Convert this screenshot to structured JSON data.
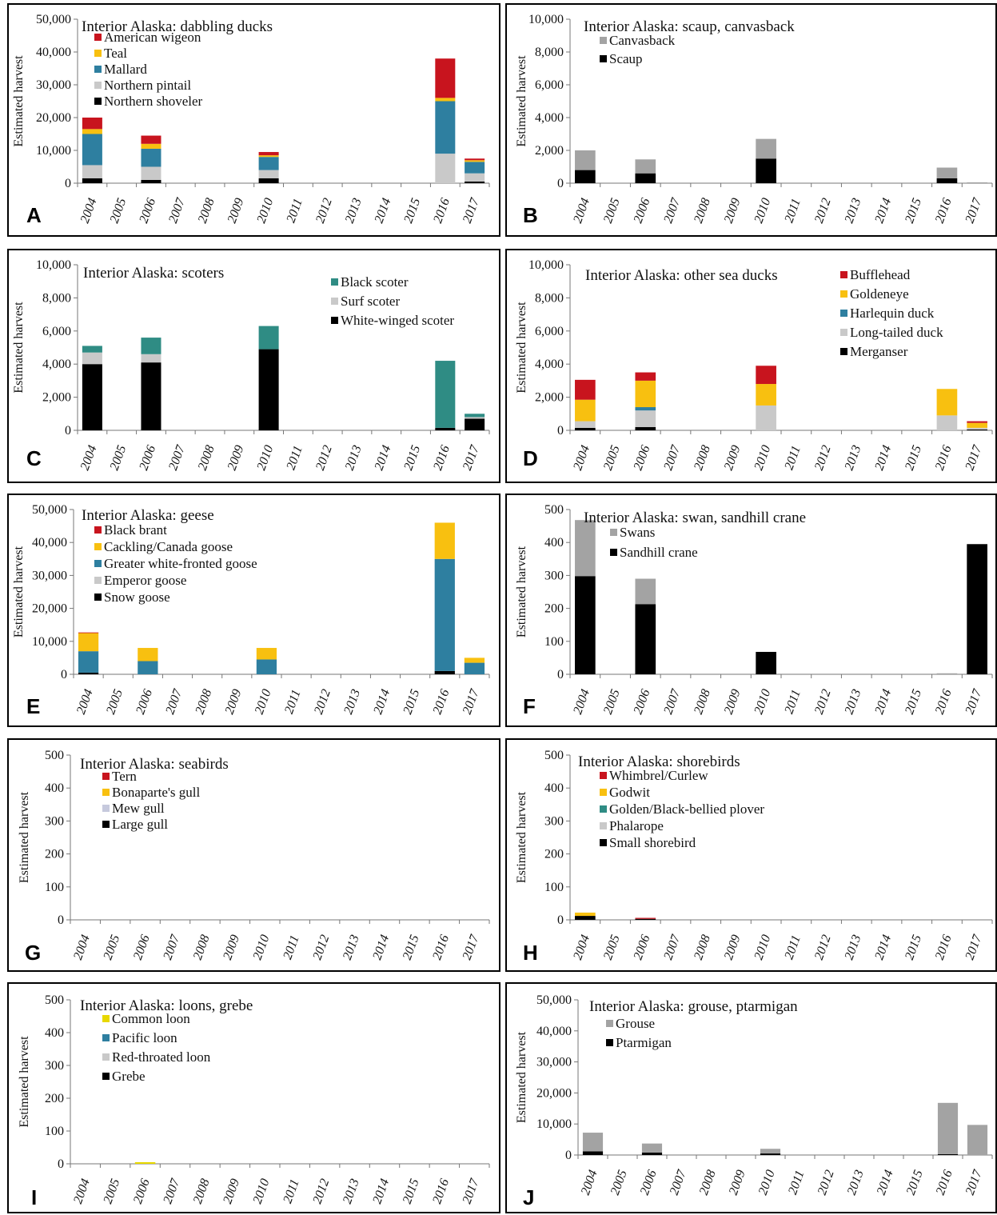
{
  "years": [
    "2004",
    "2005",
    "2006",
    "2007",
    "2008",
    "2009",
    "2010",
    "2011",
    "2012",
    "2013",
    "2014",
    "2015",
    "2016",
    "2017"
  ],
  "ylabel": "Estimated harvest",
  "colors": {
    "red": "#c8141e",
    "yellow": "#f8c010",
    "teal": "#2e7fa0",
    "tealgreen": "#2f8c84",
    "lightgray": "#c9c9c9",
    "gray": "#a3a3a3",
    "lavender": "#c6c9dd",
    "black": "#000000"
  },
  "chart_data": [
    {
      "letter": "A",
      "type": "bar",
      "stacked": true,
      "title": "Interior Alaska: dabbling ducks",
      "ylim": [
        0,
        50000
      ],
      "yticks": [
        "0",
        "10,000",
        "20,000",
        "30,000",
        "40,000",
        "50,000"
      ],
      "legend_placement": "top-left",
      "series": [
        {
          "name": "Northern shoveler",
          "color": "#000000",
          "values": [
            1500,
            0,
            1000,
            0,
            0,
            0,
            1500,
            0,
            0,
            0,
            0,
            0,
            0,
            500
          ]
        },
        {
          "name": "Northern pintail",
          "color": "#c9c9c9",
          "values": [
            4000,
            0,
            4000,
            0,
            0,
            0,
            2500,
            0,
            0,
            0,
            0,
            0,
            9000,
            2500
          ]
        },
        {
          "name": "Mallard",
          "color": "#2e7fa0",
          "values": [
            9500,
            0,
            5500,
            0,
            0,
            0,
            4000,
            0,
            0,
            0,
            0,
            0,
            16000,
            3500
          ]
        },
        {
          "name": "Teal",
          "color": "#f8c010",
          "values": [
            1500,
            0,
            1500,
            0,
            0,
            0,
            500,
            0,
            0,
            0,
            0,
            0,
            1000,
            500
          ]
        },
        {
          "name": "American wigeon",
          "color": "#c8141e",
          "values": [
            3500,
            0,
            2500,
            0,
            0,
            0,
            1000,
            0,
            0,
            0,
            0,
            0,
            12000,
            500
          ]
        }
      ]
    },
    {
      "letter": "B",
      "type": "bar",
      "stacked": true,
      "title": "Interior Alaska: scaup, canvasback",
      "ylim": [
        0,
        10000
      ],
      "yticks": [
        "0",
        "2,000",
        "4,000",
        "6,000",
        "8,000",
        "10,000"
      ],
      "legend_placement": "top-left",
      "series": [
        {
          "name": "Scaup",
          "color": "#000000",
          "values": [
            800,
            0,
            600,
            0,
            0,
            0,
            1500,
            0,
            0,
            0,
            0,
            0,
            300,
            0
          ]
        },
        {
          "name": "Canvasback",
          "color": "#a3a3a3",
          "values": [
            1200,
            0,
            850,
            0,
            0,
            0,
            1200,
            0,
            0,
            0,
            0,
            0,
            650,
            50
          ]
        }
      ]
    },
    {
      "letter": "C",
      "type": "bar",
      "stacked": true,
      "title": "Interior Alaska: scoters",
      "ylim": [
        0,
        10000
      ],
      "yticks": [
        "0",
        "2,000",
        "4,000",
        "6,000",
        "8,000",
        "10,000"
      ],
      "legend_placement": "top-right",
      "series": [
        {
          "name": "White-winged scoter",
          "color": "#000000",
          "values": [
            4000,
            0,
            4100,
            0,
            0,
            0,
            4900,
            0,
            0,
            0,
            0,
            0,
            150,
            700
          ]
        },
        {
          "name": "Surf scoter",
          "color": "#c9c9c9",
          "values": [
            700,
            0,
            500,
            0,
            0,
            0,
            0,
            0,
            0,
            0,
            0,
            0,
            0,
            100
          ]
        },
        {
          "name": "Black scoter",
          "color": "#2f8c84",
          "values": [
            400,
            0,
            1000,
            0,
            0,
            0,
            1400,
            0,
            0,
            0,
            0,
            0,
            4050,
            200
          ]
        }
      ]
    },
    {
      "letter": "D",
      "type": "bar",
      "stacked": true,
      "title": "Interior Alaska: other sea ducks",
      "ylim": [
        0,
        10000
      ],
      "yticks": [
        "0",
        "2,000",
        "4,000",
        "6,000",
        "8,000",
        "10,000"
      ],
      "legend_placement": "top-right",
      "series": [
        {
          "name": "Merganser",
          "color": "#000000",
          "values": [
            150,
            0,
            200,
            0,
            0,
            0,
            0,
            0,
            0,
            0,
            0,
            0,
            0,
            50
          ]
        },
        {
          "name": "Long-tailed duck",
          "color": "#c9c9c9",
          "values": [
            400,
            0,
            1000,
            0,
            0,
            0,
            1500,
            0,
            0,
            0,
            0,
            0,
            900,
            100
          ]
        },
        {
          "name": "Harlequin duck",
          "color": "#2e7fa0",
          "values": [
            0,
            0,
            200,
            0,
            0,
            0,
            0,
            0,
            0,
            0,
            0,
            0,
            0,
            0
          ]
        },
        {
          "name": "Goldeneye",
          "color": "#f8c010",
          "values": [
            1300,
            0,
            1600,
            0,
            0,
            0,
            1300,
            0,
            0,
            0,
            0,
            0,
            1600,
            300
          ]
        },
        {
          "name": "Bufflehead",
          "color": "#c8141e",
          "values": [
            1200,
            0,
            500,
            0,
            0,
            0,
            1100,
            0,
            0,
            0,
            0,
            0,
            0,
            100
          ]
        }
      ]
    },
    {
      "letter": "E",
      "type": "bar",
      "stacked": true,
      "title": "Interior Alaska: geese",
      "ylim": [
        0,
        50000
      ],
      "yticks": [
        "0",
        "10,000",
        "20,000",
        "30,000",
        "40,000",
        "50,000"
      ],
      "legend_placement": "top-left",
      "series": [
        {
          "name": "Snow goose",
          "color": "#000000",
          "values": [
            500,
            0,
            0,
            0,
            0,
            0,
            0,
            0,
            0,
            0,
            0,
            0,
            1000,
            0
          ]
        },
        {
          "name": "Emperor goose",
          "color": "#c9c9c9",
          "values": [
            0,
            0,
            0,
            0,
            0,
            0,
            0,
            0,
            0,
            0,
            0,
            0,
            0,
            0
          ]
        },
        {
          "name": "Greater white-fronted goose",
          "color": "#2e7fa0",
          "values": [
            6500,
            0,
            4000,
            0,
            0,
            0,
            4500,
            0,
            0,
            0,
            0,
            0,
            34000,
            3500
          ]
        },
        {
          "name": "Cackling/Canada goose",
          "color": "#f8c010",
          "values": [
            5500,
            0,
            4000,
            0,
            0,
            0,
            3500,
            0,
            0,
            0,
            0,
            0,
            11000,
            1500
          ]
        },
        {
          "name": "Black brant",
          "color": "#c8141e",
          "values": [
            200,
            0,
            0,
            0,
            0,
            0,
            0,
            0,
            0,
            0,
            0,
            0,
            0,
            0
          ]
        }
      ]
    },
    {
      "letter": "F",
      "type": "bar",
      "stacked": true,
      "title": "Interior Alaska: swan, sandhill crane",
      "ylim": [
        0,
        500
      ],
      "yticks": [
        "0",
        "100",
        "200",
        "300",
        "400",
        "500"
      ],
      "legend_placement": "top-left",
      "series": [
        {
          "name": "Sandhill crane",
          "color": "#000000",
          "values": [
            298,
            0,
            213,
            0,
            0,
            0,
            68,
            0,
            0,
            0,
            0,
            0,
            0,
            395
          ]
        },
        {
          "name": "Swans",
          "color": "#a3a3a3",
          "values": [
            170,
            0,
            77,
            0,
            0,
            0,
            0,
            0,
            0,
            0,
            0,
            0,
            3,
            0
          ]
        }
      ]
    },
    {
      "letter": "G",
      "type": "bar",
      "stacked": true,
      "title": "Interior Alaska: seabirds",
      "ylim": [
        0,
        500
      ],
      "yticks": [
        "0",
        "100",
        "200",
        "300",
        "400",
        "500"
      ],
      "legend_placement": "top-left",
      "series": [
        {
          "name": "Large gull",
          "color": "#000000",
          "values": [
            0,
            0,
            0,
            0,
            0,
            0,
            0,
            0,
            0,
            0,
            0,
            0,
            0,
            0
          ]
        },
        {
          "name": "Mew gull",
          "color": "#c6c9dd",
          "values": [
            0,
            0,
            0,
            0,
            0,
            0,
            0,
            0,
            0,
            0,
            0,
            0,
            0,
            0
          ]
        },
        {
          "name": "Bonaparte's gull",
          "color": "#f8c010",
          "values": [
            0,
            0,
            0,
            0,
            0,
            0,
            0,
            0,
            0,
            0,
            0,
            0,
            0,
            0
          ]
        },
        {
          "name": "Tern",
          "color": "#c8141e",
          "values": [
            0,
            0,
            0,
            0,
            0,
            0,
            0,
            0,
            0,
            0,
            0,
            0,
            0,
            0
          ]
        }
      ]
    },
    {
      "letter": "H",
      "type": "bar",
      "stacked": true,
      "title": "Interior Alaska: shorebirds",
      "ylim": [
        0,
        500
      ],
      "yticks": [
        "0",
        "100",
        "200",
        "300",
        "400",
        "500"
      ],
      "legend_placement": "top-left",
      "series": [
        {
          "name": "Small shorebird",
          "color": "#000000",
          "values": [
            12,
            0,
            3,
            0,
            0,
            0,
            0,
            0,
            0,
            0,
            0,
            0,
            0,
            0
          ]
        },
        {
          "name": "Phalarope",
          "color": "#c9c9c9",
          "values": [
            0,
            0,
            0,
            0,
            0,
            0,
            0,
            0,
            0,
            0,
            0,
            0,
            0,
            0
          ]
        },
        {
          "name": "Golden/Black-bellied plover",
          "color": "#2f8c84",
          "values": [
            0,
            0,
            0,
            0,
            0,
            0,
            0,
            0,
            0,
            0,
            0,
            0,
            0,
            0
          ]
        },
        {
          "name": "Godwit",
          "color": "#f8c010",
          "values": [
            10,
            0,
            0,
            0,
            0,
            0,
            0,
            0,
            0,
            0,
            0,
            0,
            0,
            0
          ]
        },
        {
          "name": "Whimbrel/Curlew",
          "color": "#c8141e",
          "values": [
            0,
            0,
            3,
            0,
            0,
            0,
            0,
            0,
            0,
            0,
            0,
            0,
            0,
            0
          ]
        }
      ]
    },
    {
      "letter": "I",
      "type": "bar",
      "stacked": true,
      "title": "Interior Alaska: loons, grebe",
      "ylim": [
        0,
        500
      ],
      "yticks": [
        "0",
        "100",
        "200",
        "300",
        "400",
        "500"
      ],
      "legend_placement": "top-left",
      "series": [
        {
          "name": "Grebe",
          "color": "#000000",
          "values": [
            0,
            0,
            0,
            0,
            0,
            0,
            0,
            0,
            0,
            0,
            0,
            0,
            0,
            0
          ]
        },
        {
          "name": "Red-throated loon",
          "color": "#c9c9c9",
          "values": [
            0,
            0,
            0,
            0,
            0,
            0,
            0,
            0,
            0,
            0,
            0,
            0,
            0,
            0
          ]
        },
        {
          "name": "Pacific loon",
          "color": "#2e7fa0",
          "values": [
            0,
            0,
            0,
            0,
            0,
            0,
            0,
            0,
            0,
            0,
            0,
            0,
            0,
            0
          ]
        },
        {
          "name": "Common loon",
          "color": "#e8d800",
          "values": [
            0,
            0,
            5,
            0,
            0,
            0,
            0,
            0,
            0,
            0,
            0,
            0,
            0,
            0
          ]
        }
      ]
    },
    {
      "letter": "J",
      "type": "bar",
      "stacked": true,
      "title": "Interior Alaska: grouse, ptarmigan",
      "ylim": [
        0,
        50000
      ],
      "yticks": [
        "0",
        "10,000",
        "20,000",
        "30,000",
        "40,000",
        "50,000"
      ],
      "legend_placement": "top-left",
      "series": [
        {
          "name": "Ptarmigan",
          "color": "#000000",
          "values": [
            1200,
            0,
            800,
            0,
            0,
            0,
            500,
            0,
            0,
            0,
            0,
            0,
            300,
            0
          ]
        },
        {
          "name": "Grouse",
          "color": "#a3a3a3",
          "values": [
            6000,
            0,
            2900,
            0,
            0,
            0,
            1500,
            0,
            0,
            0,
            0,
            0,
            16500,
            9700
          ]
        }
      ]
    }
  ]
}
